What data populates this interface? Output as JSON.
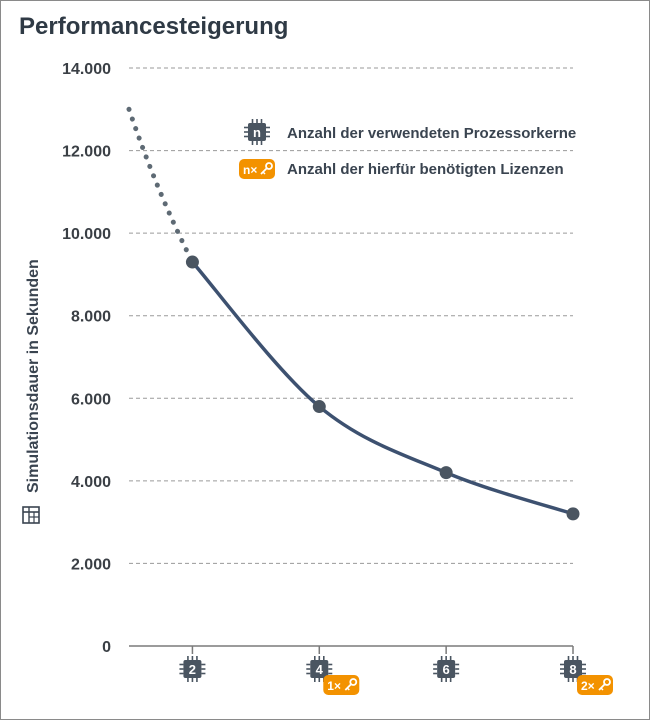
{
  "chart_data": {
    "type": "line",
    "title": "Performancesteigerung",
    "ylabel": "Simulationsdauer in Sekunden",
    "ylim": [
      0,
      14000
    ],
    "yticks": [
      "0",
      "2.000",
      "4.000",
      "6.000",
      "8.000",
      "10.000",
      "12.000",
      "14.000"
    ],
    "ytick_values": [
      0,
      2000,
      4000,
      6000,
      8000,
      10000,
      12000,
      14000
    ],
    "x": [
      2,
      4,
      6,
      8
    ],
    "x_labels": [
      "2",
      "4",
      "6",
      "8"
    ],
    "licenses": [
      null,
      "1×",
      null,
      "2×"
    ],
    "values": [
      9300,
      5800,
      4200,
      3200
    ],
    "extrapolation": {
      "x_start": 1,
      "y_start": 13000
    },
    "grid": true,
    "legend": [
      {
        "icon": "processor-chip-icon",
        "badge": "n",
        "label": "Anzahl der verwendeten Prozessorkerne"
      },
      {
        "icon": "license-key-icon",
        "badge": "n×",
        "label": "Anzahl der hierfür benötigten Lizenzen"
      }
    ],
    "legend_position": "top-right",
    "colors": {
      "line": "#3d5170",
      "marker": "#4a5561",
      "chip": "#4a5561",
      "license": "#f39200",
      "grid": "#9a9a9a",
      "dotted": "#5e6a74"
    }
  }
}
